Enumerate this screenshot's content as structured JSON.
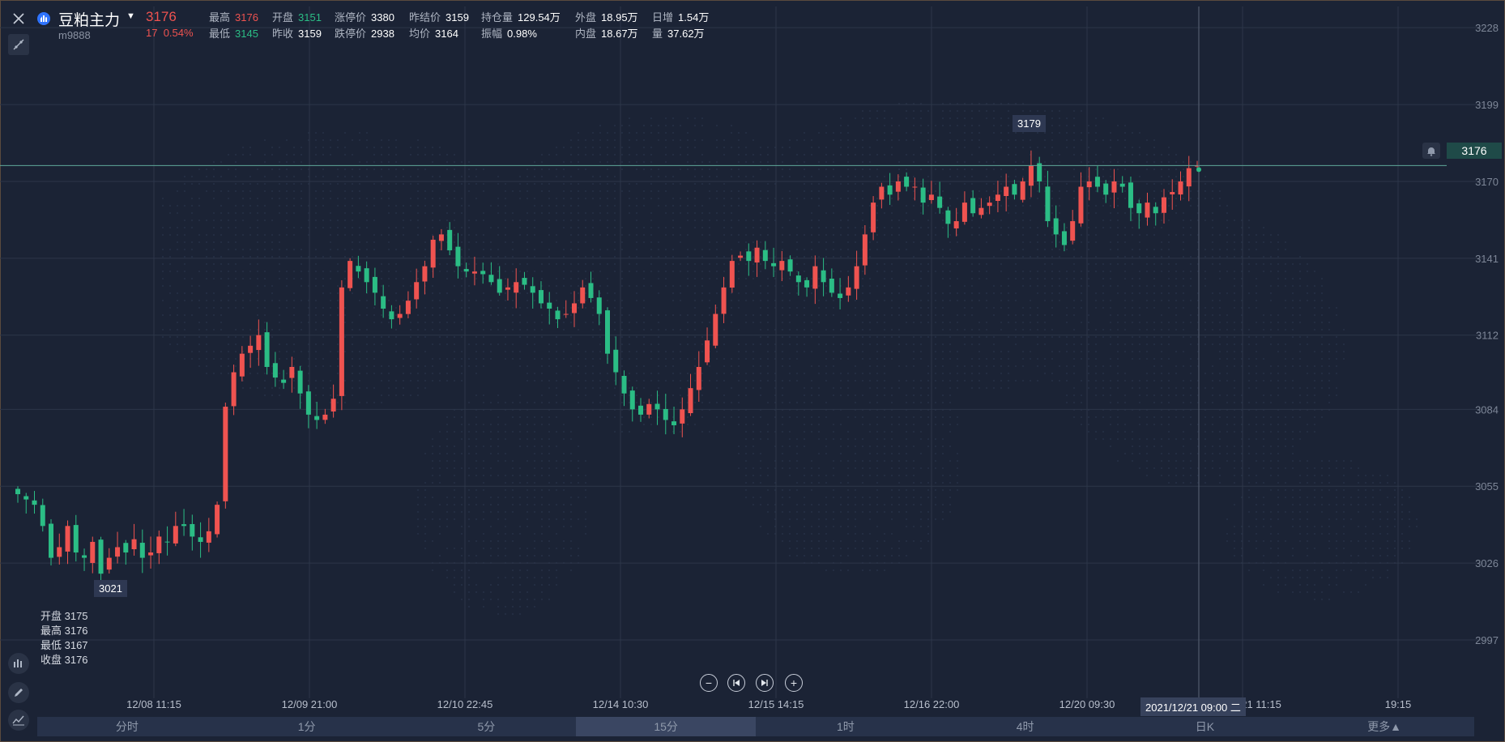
{
  "header": {
    "symbol_name": "豆粕主力",
    "symbol_code": "m9888",
    "last_price": "3176",
    "change": "17",
    "change_pct": "0.54%",
    "quotes_row1": [
      {
        "label": "最高",
        "value": "3176",
        "color": "red"
      },
      {
        "label": "开盘",
        "value": "3151",
        "color": "grn"
      },
      {
        "label": "涨停价",
        "value": "3380",
        "color": "white"
      },
      {
        "label": "昨结价",
        "value": "3159",
        "color": "white"
      },
      {
        "label": "持仓量",
        "value": "129.54万",
        "color": "white"
      },
      {
        "label": "外盘",
        "value": "18.95万",
        "color": "white"
      },
      {
        "label": "日增",
        "value": "1.54万",
        "color": "white"
      }
    ],
    "quotes_row2": [
      {
        "label": "最低",
        "value": "3145",
        "color": "grn"
      },
      {
        "label": "昨收",
        "value": "3159",
        "color": "white"
      },
      {
        "label": "跌停价",
        "value": "2938",
        "color": "white"
      },
      {
        "label": "均价",
        "value": "3164",
        "color": "white"
      },
      {
        "label": "振幅",
        "value": "0.98%",
        "color": "white"
      },
      {
        "label": "内盘",
        "value": "18.67万",
        "color": "white"
      },
      {
        "label": "量",
        "value": "37.62万",
        "color": "white"
      }
    ]
  },
  "ohlc_panel": {
    "open": "开盘 3175",
    "high": "最高 3176",
    "low": "最低 3167",
    "close": "收盘 3176"
  },
  "labels": {
    "max_tag": "3179",
    "min_tag": "3021",
    "last_price_tag": "3176",
    "crosshair_time": "2021/12/21 09:00 二"
  },
  "tabs": [
    "分时",
    "1分",
    "5分",
    "15分",
    "1时",
    "4时",
    "日K",
    "更多▲"
  ],
  "active_tab": "15分",
  "colors": {
    "up": "#ef5350",
    "down": "#2bbd85",
    "background": "#1b2335",
    "grid": "#2c3649"
  },
  "icons": [
    "close-icon",
    "drawing-tool-icon",
    "indicator-icon",
    "pencil-icon",
    "chart-type-icon",
    "bell-icon",
    "zoom-out-icon",
    "first-page-icon",
    "last-page-icon",
    "zoom-in-icon"
  ],
  "chart_data": {
    "type": "candlestick",
    "y_ticks": [
      3228,
      3199,
      3170,
      3141,
      3112,
      3084,
      3055,
      3026,
      2997
    ],
    "x_ticks": [
      "12/08 11:15",
      "12/09 21:00",
      "12/10 22:45",
      "12/14 10:30",
      "12/15 14:15",
      "12/16 22:00",
      "12/20 09:30",
      "12/21 11:15",
      "19:15"
    ],
    "ylim": [
      2975,
      3236
    ],
    "last_price": 3176,
    "max": 3179,
    "min": 3021,
    "close_path": [
      3052,
      3050,
      3048,
      3040,
      3028,
      3032,
      3040,
      3030,
      3028,
      3034,
      3022,
      3028,
      3032,
      3030,
      3035,
      3028,
      3030,
      3036,
      3034,
      3040,
      3040,
      3036,
      3034,
      3038,
      3048,
      3085,
      3098,
      3105,
      3108,
      3112,
      3100,
      3096,
      3094,
      3100,
      3090,
      3082,
      3080,
      3082,
      3088,
      3130,
      3140,
      3136,
      3132,
      3128,
      3122,
      3118,
      3120,
      3125,
      3132,
      3138,
      3148,
      3150,
      3144,
      3138,
      3136,
      3136,
      3135,
      3132,
      3128,
      3130,
      3132,
      3131,
      3128,
      3124,
      3122,
      3118,
      3120,
      3124,
      3130,
      3126,
      3120,
      3105,
      3098,
      3090,
      3084,
      3082,
      3086,
      3084,
      3080,
      3078,
      3084,
      3092,
      3100,
      3110,
      3120,
      3130,
      3140,
      3142,
      3140,
      3145,
      3140,
      3138,
      3140,
      3136,
      3132,
      3130,
      3138,
      3132,
      3128,
      3126,
      3130,
      3138,
      3150,
      3162,
      3168,
      3165,
      3170,
      3168,
      3168,
      3162,
      3165,
      3160,
      3154,
      3155,
      3162,
      3158,
      3160,
      3162,
      3165,
      3168,
      3165,
      3170,
      3176,
      3170,
      3155,
      3150,
      3146,
      3155,
      3168,
      3170,
      3168,
      3165,
      3170,
      3168,
      3160,
      3158,
      3162,
      3158,
      3164,
      3166,
      3170,
      3175,
      3176
    ]
  }
}
